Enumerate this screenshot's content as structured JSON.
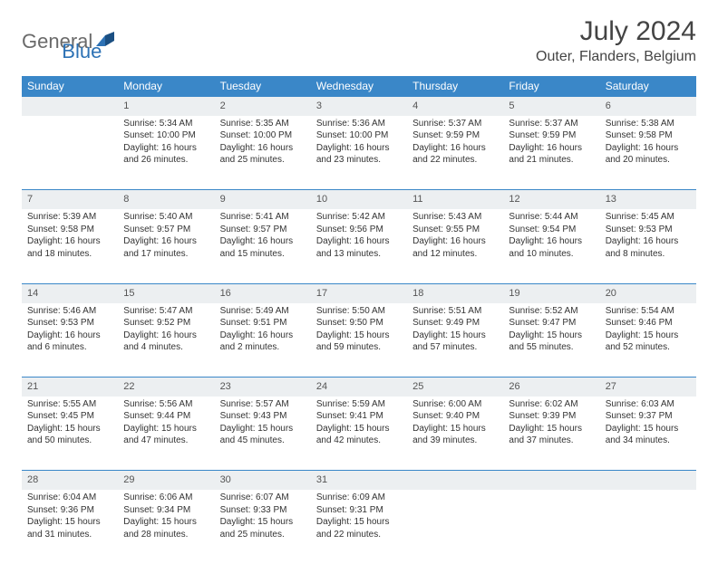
{
  "logo": {
    "text1": "General",
    "text2": "Blue"
  },
  "title": "July 2024",
  "location": "Outer, Flanders, Belgium",
  "colors": {
    "header_bg": "#3a87c8",
    "header_text": "#ffffff",
    "daynum_bg": "#eceff1",
    "border": "#3a87c8",
    "logo_gray": "#6a6a6a",
    "logo_blue": "#2d72b5"
  },
  "weekdays": [
    "Sunday",
    "Monday",
    "Tuesday",
    "Wednesday",
    "Thursday",
    "Friday",
    "Saturday"
  ],
  "weeks": [
    {
      "nums": [
        "",
        "1",
        "2",
        "3",
        "4",
        "5",
        "6"
      ],
      "cells": [
        null,
        {
          "sunrise": "Sunrise: 5:34 AM",
          "sunset": "Sunset: 10:00 PM",
          "daylight": "Daylight: 16 hours and 26 minutes."
        },
        {
          "sunrise": "Sunrise: 5:35 AM",
          "sunset": "Sunset: 10:00 PM",
          "daylight": "Daylight: 16 hours and 25 minutes."
        },
        {
          "sunrise": "Sunrise: 5:36 AM",
          "sunset": "Sunset: 10:00 PM",
          "daylight": "Daylight: 16 hours and 23 minutes."
        },
        {
          "sunrise": "Sunrise: 5:37 AM",
          "sunset": "Sunset: 9:59 PM",
          "daylight": "Daylight: 16 hours and 22 minutes."
        },
        {
          "sunrise": "Sunrise: 5:37 AM",
          "sunset": "Sunset: 9:59 PM",
          "daylight": "Daylight: 16 hours and 21 minutes."
        },
        {
          "sunrise": "Sunrise: 5:38 AM",
          "sunset": "Sunset: 9:58 PM",
          "daylight": "Daylight: 16 hours and 20 minutes."
        }
      ]
    },
    {
      "nums": [
        "7",
        "8",
        "9",
        "10",
        "11",
        "12",
        "13"
      ],
      "cells": [
        {
          "sunrise": "Sunrise: 5:39 AM",
          "sunset": "Sunset: 9:58 PM",
          "daylight": "Daylight: 16 hours and 18 minutes."
        },
        {
          "sunrise": "Sunrise: 5:40 AM",
          "sunset": "Sunset: 9:57 PM",
          "daylight": "Daylight: 16 hours and 17 minutes."
        },
        {
          "sunrise": "Sunrise: 5:41 AM",
          "sunset": "Sunset: 9:57 PM",
          "daylight": "Daylight: 16 hours and 15 minutes."
        },
        {
          "sunrise": "Sunrise: 5:42 AM",
          "sunset": "Sunset: 9:56 PM",
          "daylight": "Daylight: 16 hours and 13 minutes."
        },
        {
          "sunrise": "Sunrise: 5:43 AM",
          "sunset": "Sunset: 9:55 PM",
          "daylight": "Daylight: 16 hours and 12 minutes."
        },
        {
          "sunrise": "Sunrise: 5:44 AM",
          "sunset": "Sunset: 9:54 PM",
          "daylight": "Daylight: 16 hours and 10 minutes."
        },
        {
          "sunrise": "Sunrise: 5:45 AM",
          "sunset": "Sunset: 9:53 PM",
          "daylight": "Daylight: 16 hours and 8 minutes."
        }
      ]
    },
    {
      "nums": [
        "14",
        "15",
        "16",
        "17",
        "18",
        "19",
        "20"
      ],
      "cells": [
        {
          "sunrise": "Sunrise: 5:46 AM",
          "sunset": "Sunset: 9:53 PM",
          "daylight": "Daylight: 16 hours and 6 minutes."
        },
        {
          "sunrise": "Sunrise: 5:47 AM",
          "sunset": "Sunset: 9:52 PM",
          "daylight": "Daylight: 16 hours and 4 minutes."
        },
        {
          "sunrise": "Sunrise: 5:49 AM",
          "sunset": "Sunset: 9:51 PM",
          "daylight": "Daylight: 16 hours and 2 minutes."
        },
        {
          "sunrise": "Sunrise: 5:50 AM",
          "sunset": "Sunset: 9:50 PM",
          "daylight": "Daylight: 15 hours and 59 minutes."
        },
        {
          "sunrise": "Sunrise: 5:51 AM",
          "sunset": "Sunset: 9:49 PM",
          "daylight": "Daylight: 15 hours and 57 minutes."
        },
        {
          "sunrise": "Sunrise: 5:52 AM",
          "sunset": "Sunset: 9:47 PM",
          "daylight": "Daylight: 15 hours and 55 minutes."
        },
        {
          "sunrise": "Sunrise: 5:54 AM",
          "sunset": "Sunset: 9:46 PM",
          "daylight": "Daylight: 15 hours and 52 minutes."
        }
      ]
    },
    {
      "nums": [
        "21",
        "22",
        "23",
        "24",
        "25",
        "26",
        "27"
      ],
      "cells": [
        {
          "sunrise": "Sunrise: 5:55 AM",
          "sunset": "Sunset: 9:45 PM",
          "daylight": "Daylight: 15 hours and 50 minutes."
        },
        {
          "sunrise": "Sunrise: 5:56 AM",
          "sunset": "Sunset: 9:44 PM",
          "daylight": "Daylight: 15 hours and 47 minutes."
        },
        {
          "sunrise": "Sunrise: 5:57 AM",
          "sunset": "Sunset: 9:43 PM",
          "daylight": "Daylight: 15 hours and 45 minutes."
        },
        {
          "sunrise": "Sunrise: 5:59 AM",
          "sunset": "Sunset: 9:41 PM",
          "daylight": "Daylight: 15 hours and 42 minutes."
        },
        {
          "sunrise": "Sunrise: 6:00 AM",
          "sunset": "Sunset: 9:40 PM",
          "daylight": "Daylight: 15 hours and 39 minutes."
        },
        {
          "sunrise": "Sunrise: 6:02 AM",
          "sunset": "Sunset: 9:39 PM",
          "daylight": "Daylight: 15 hours and 37 minutes."
        },
        {
          "sunrise": "Sunrise: 6:03 AM",
          "sunset": "Sunset: 9:37 PM",
          "daylight": "Daylight: 15 hours and 34 minutes."
        }
      ]
    },
    {
      "nums": [
        "28",
        "29",
        "30",
        "31",
        "",
        "",
        ""
      ],
      "cells": [
        {
          "sunrise": "Sunrise: 6:04 AM",
          "sunset": "Sunset: 9:36 PM",
          "daylight": "Daylight: 15 hours and 31 minutes."
        },
        {
          "sunrise": "Sunrise: 6:06 AM",
          "sunset": "Sunset: 9:34 PM",
          "daylight": "Daylight: 15 hours and 28 minutes."
        },
        {
          "sunrise": "Sunrise: 6:07 AM",
          "sunset": "Sunset: 9:33 PM",
          "daylight": "Daylight: 15 hours and 25 minutes."
        },
        {
          "sunrise": "Sunrise: 6:09 AM",
          "sunset": "Sunset: 9:31 PM",
          "daylight": "Daylight: 15 hours and 22 minutes."
        },
        null,
        null,
        null
      ]
    }
  ]
}
